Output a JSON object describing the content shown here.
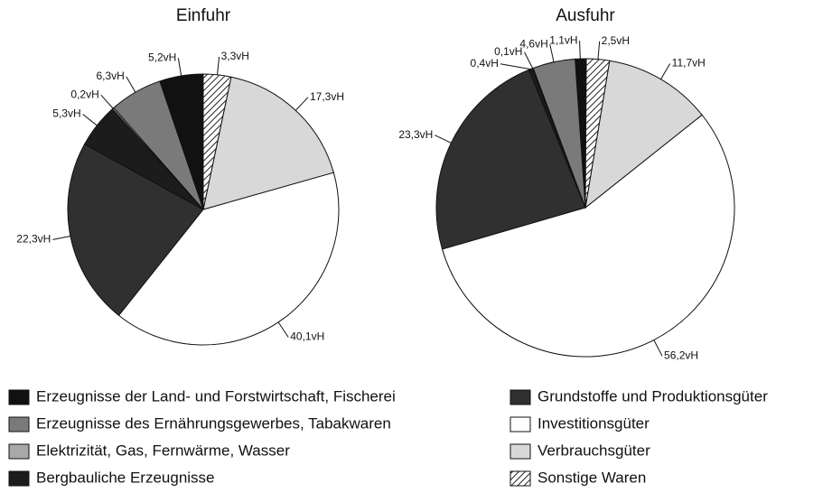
{
  "chart_data": [
    {
      "type": "pie",
      "title": "Einfuhr",
      "values": [
        5.2,
        6.3,
        0.2,
        5.3,
        22.3,
        40.1,
        17.3,
        3.3
      ],
      "value_labels": [
        "5,2vH",
        "6,3vH",
        "0,2vH",
        "5,3vH",
        "22,3vH",
        "40,1vH",
        "17,3vH",
        "3,3vH"
      ]
    },
    {
      "type": "pie",
      "title": "Ausfuhr",
      "values": [
        1.1,
        4.6,
        0.1,
        0.4,
        23.3,
        56.2,
        11.7,
        2.5
      ],
      "value_labels": [
        "1,1vH",
        "4,6vH",
        "0,1vH",
        "0,4vH",
        "23,3vH",
        "56,2vH",
        "11,7vH",
        "2,5vH"
      ]
    }
  ],
  "legend": {
    "categories": [
      "Erzeugnisse der Land- und Forstwirtschaft, Fischerei",
      "Erzeugnisse des Ernährungsgewerbes, Tabakwaren",
      "Elektrizität, Gas, Fernwärme, Wasser",
      "Bergbauliche Erzeugnisse",
      "Grundstoffe und Produktionsgüter",
      "Investitionsgüter",
      "Verbrauchsgüter",
      "Sonstige Waren"
    ],
    "colors": [
      "#111111",
      "#7a7a7a",
      "#a8a8a8",
      "#1c1c1c",
      "#303030",
      "#ffffff",
      "#d8d8d8",
      "#9a9a9a"
    ]
  }
}
